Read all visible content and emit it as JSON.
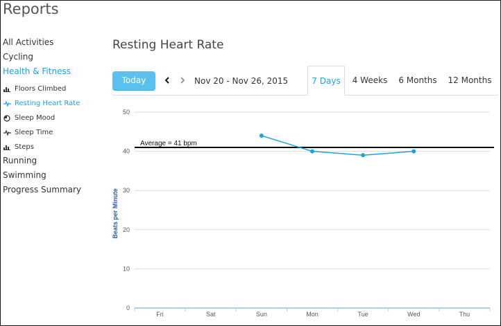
{
  "header": {
    "title": "Reports"
  },
  "sidebar": {
    "items": [
      {
        "label": "All Activities"
      },
      {
        "label": "Cycling"
      },
      {
        "label": "Health & Fitness"
      }
    ],
    "sub_items": [
      {
        "label": "Floors Climbed",
        "icon": "bar-chart-icon"
      },
      {
        "label": "Resting Heart Rate",
        "icon": "heartbeat-icon"
      },
      {
        "label": "Sleep Mood",
        "icon": "mood-icon"
      },
      {
        "label": "Sleep Time",
        "icon": "heartbeat-icon"
      },
      {
        "label": "Steps",
        "icon": "bar-chart-icon"
      }
    ],
    "items_after": [
      {
        "label": "Running"
      },
      {
        "label": "Swimming"
      },
      {
        "label": "Progress Summary"
      }
    ]
  },
  "main": {
    "title": "Resting Heart Rate",
    "today_label": "Today",
    "date_range": "Nov 20 - Nov 26, 2015",
    "tabs": [
      {
        "label": "7 Days"
      },
      {
        "label": "4 Weeks"
      },
      {
        "label": "6 Months"
      },
      {
        "label": "12 Months"
      }
    ],
    "active_tab": "7 Days"
  },
  "colors": {
    "accent": "#1aa3e0",
    "today_button": "#5bc0eb",
    "average_line": "#000000",
    "ylabel": "#2c5f9e"
  },
  "chart_data": {
    "type": "line",
    "categories": [
      "Fri",
      "Sat",
      "Sun",
      "Mon",
      "Tue",
      "Wed",
      "Thu"
    ],
    "values": [
      null,
      null,
      44,
      40,
      39,
      40,
      null
    ],
    "ylabel": "Beats per Minute",
    "xlabel": "",
    "ylim": [
      0,
      50
    ],
    "yticks": [
      0,
      10,
      20,
      30,
      40,
      50
    ],
    "grid": true,
    "average": {
      "value": 41,
      "label": "Average = 41 bpm"
    }
  }
}
